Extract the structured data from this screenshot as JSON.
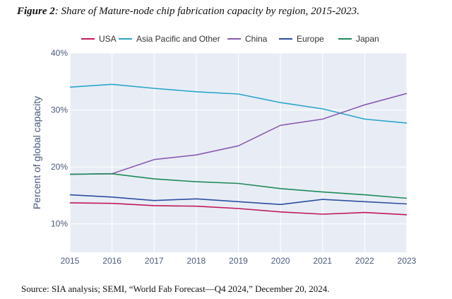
{
  "figure": {
    "label": "Figure 2",
    "caption": ": Share of Mature-node chip fabrication capacity by region, 2015-2023.",
    "source": "Source: SIA analysis; SEMI, “World Fab Forecast—Q4 2024,” December 20, 2024."
  },
  "chart_data": {
    "type": "line",
    "title": "",
    "xlabel": "",
    "ylabel": "Percent of global capacity",
    "x": [
      2015,
      2016,
      2017,
      2018,
      2019,
      2020,
      2021,
      2022,
      2023
    ],
    "ylim": [
      5,
      40
    ],
    "yticks": [
      10,
      20,
      30,
      40
    ],
    "ytick_labels": [
      "10%",
      "20%",
      "30%",
      "40%"
    ],
    "grid": true,
    "legend_position": "top",
    "series": [
      {
        "name": "USA",
        "color": "#c0185a",
        "values": [
          13.7,
          13.6,
          13.2,
          13.1,
          12.7,
          12.1,
          11.7,
          12.0,
          11.6
        ]
      },
      {
        "name": "Asia Pacific and Other",
        "color": "#2aa5c9",
        "values": [
          34.0,
          34.5,
          33.8,
          33.2,
          32.8,
          31.3,
          30.2,
          28.4,
          27.7
        ]
      },
      {
        "name": "China",
        "color": "#8b5bb1",
        "values": [
          18.7,
          18.8,
          21.3,
          22.1,
          23.7,
          27.3,
          28.4,
          30.9,
          32.9
        ]
      },
      {
        "name": "Europe",
        "color": "#2d4fa0",
        "values": [
          15.1,
          14.7,
          14.1,
          14.4,
          13.9,
          13.4,
          14.3,
          13.9,
          13.5
        ]
      },
      {
        "name": "Japan",
        "color": "#1f8a5b",
        "values": [
          18.7,
          18.8,
          17.9,
          17.4,
          17.1,
          16.2,
          15.6,
          15.1,
          14.5
        ]
      }
    ]
  }
}
